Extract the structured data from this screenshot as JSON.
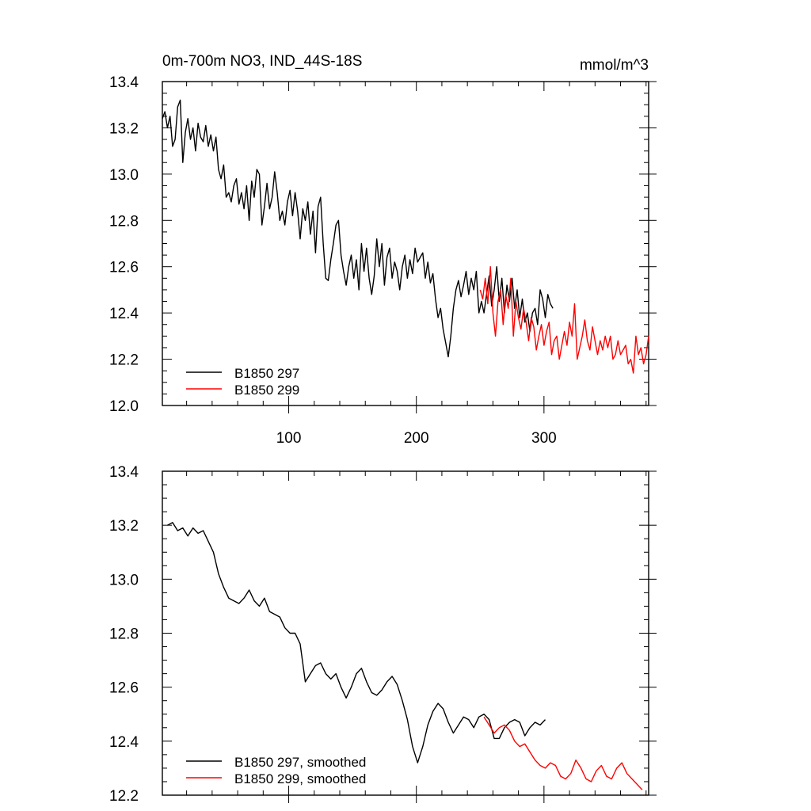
{
  "chart_data": [
    {
      "type": "line",
      "title": "0m-700m NO3, IND_44S-18S",
      "units": "mmol/m^3",
      "xlim": [
        1,
        382
      ],
      "ylim": [
        12.0,
        13.4
      ],
      "x_ticks": [
        100,
        200,
        300
      ],
      "y_ticks": [
        12.0,
        12.2,
        12.4,
        12.6,
        12.8,
        13.0,
        13.2,
        13.4
      ],
      "y_tick_labels": [
        "12.0",
        "12.2",
        "12.4",
        "12.6",
        "12.8",
        "13.0",
        "13.2",
        "13.4"
      ],
      "legend_position": "bottom-left",
      "series": [
        {
          "name": "B1850 297",
          "color": "#000000",
          "x": [
            1,
            3,
            5,
            7,
            9,
            11,
            13,
            15,
            17,
            19,
            21,
            23,
            25,
            27,
            29,
            31,
            33,
            35,
            37,
            39,
            41,
            43,
            45,
            47,
            49,
            51,
            53,
            55,
            57,
            59,
            61,
            63,
            65,
            67,
            69,
            71,
            73,
            75,
            77,
            79,
            81,
            83,
            85,
            87,
            89,
            91,
            93,
            95,
            97,
            99,
            101,
            103,
            105,
            107,
            109,
            111,
            113,
            115,
            117,
            119,
            121,
            123,
            125,
            127,
            129,
            131,
            133,
            135,
            137,
            139,
            141,
            143,
            145,
            147,
            149,
            151,
            153,
            155,
            157,
            159,
            161,
            163,
            165,
            167,
            169,
            171,
            173,
            175,
            177,
            179,
            181,
            183,
            185,
            187,
            189,
            191,
            193,
            195,
            197,
            199,
            201,
            203,
            205,
            207,
            209,
            211,
            213,
            215,
            217,
            219,
            221,
            223,
            225,
            227,
            229,
            231,
            233,
            235,
            237,
            239,
            241,
            243,
            245,
            247,
            249,
            251,
            253,
            255,
            257,
            259,
            261,
            263,
            265,
            267,
            269,
            271,
            273,
            275,
            277,
            279,
            281,
            283,
            285,
            287,
            289,
            291,
            293,
            295,
            297,
            299,
            301,
            303,
            305,
            307
          ],
          "values": [
            13.24,
            13.27,
            13.2,
            13.25,
            13.12,
            13.15,
            13.29,
            13.32,
            13.05,
            13.18,
            13.24,
            13.15,
            13.2,
            13.1,
            13.22,
            13.16,
            13.14,
            13.21,
            13.12,
            13.17,
            13.1,
            13.16,
            13.02,
            12.98,
            13.04,
            12.9,
            12.92,
            12.88,
            12.95,
            12.98,
            12.87,
            12.92,
            12.85,
            12.95,
            12.8,
            12.97,
            12.9,
            13.02,
            13.0,
            12.78,
            12.86,
            12.96,
            12.85,
            12.9,
            13.01,
            12.92,
            12.8,
            12.84,
            12.78,
            12.88,
            12.93,
            12.82,
            12.92,
            12.84,
            12.72,
            12.85,
            12.8,
            12.88,
            12.74,
            12.84,
            12.66,
            12.86,
            12.9,
            12.7,
            12.55,
            12.54,
            12.63,
            12.7,
            12.78,
            12.8,
            12.65,
            12.58,
            12.52,
            12.6,
            12.65,
            12.55,
            12.63,
            12.5,
            12.7,
            12.58,
            12.68,
            12.55,
            12.48,
            12.56,
            12.72,
            12.6,
            12.7,
            12.52,
            12.64,
            12.68,
            12.55,
            12.62,
            12.58,
            12.5,
            12.6,
            12.65,
            12.55,
            12.63,
            12.57,
            12.68,
            12.62,
            12.64,
            12.66,
            12.55,
            12.62,
            12.53,
            12.57,
            12.46,
            12.38,
            12.42,
            12.33,
            12.27,
            12.21,
            12.3,
            12.42,
            12.5,
            12.54,
            12.47,
            12.52,
            12.58,
            12.48,
            12.55,
            12.5,
            12.58,
            12.4,
            12.45,
            12.4,
            12.48,
            12.56,
            12.43,
            12.5,
            12.6,
            12.45,
            12.55,
            12.4,
            12.52,
            12.45,
            12.55,
            12.42,
            12.5,
            12.38,
            12.46,
            12.36,
            12.4,
            12.32,
            12.4,
            12.42,
            12.35,
            12.5,
            12.46,
            12.38,
            12.48,
            12.44,
            12.42
          ]
        },
        {
          "name": "B1850 299",
          "color": "#ff0000",
          "x": [
            250,
            252,
            254,
            256,
            258,
            260,
            262,
            264,
            266,
            268,
            270,
            272,
            274,
            276,
            278,
            280,
            282,
            284,
            286,
            288,
            290,
            292,
            294,
            296,
            298,
            300,
            302,
            304,
            306,
            308,
            310,
            312,
            314,
            316,
            318,
            320,
            322,
            324,
            326,
            328,
            330,
            332,
            334,
            336,
            338,
            340,
            342,
            344,
            346,
            348,
            350,
            352,
            354,
            356,
            358,
            360,
            362,
            364,
            366,
            368,
            370,
            372,
            374,
            376,
            378,
            380,
            382
          ],
          "values": [
            12.5,
            12.46,
            12.55,
            12.44,
            12.6,
            12.4,
            12.3,
            12.45,
            12.5,
            12.35,
            12.48,
            12.42,
            12.55,
            12.3,
            12.45,
            12.38,
            12.33,
            12.42,
            12.36,
            12.28,
            12.38,
            12.34,
            12.24,
            12.3,
            12.35,
            12.26,
            12.32,
            12.36,
            12.22,
            12.28,
            12.3,
            12.2,
            12.26,
            12.32,
            12.26,
            12.36,
            12.3,
            12.44,
            12.2,
            12.25,
            12.3,
            12.37,
            12.28,
            12.24,
            12.34,
            12.28,
            12.22,
            12.28,
            12.24,
            12.3,
            12.25,
            12.3,
            12.2,
            12.22,
            12.28,
            12.22,
            12.24,
            12.26,
            12.18,
            12.2,
            12.14,
            12.3,
            12.22,
            12.25,
            12.18,
            12.22,
            12.3
          ]
        }
      ]
    },
    {
      "type": "line",
      "xlim": [
        1,
        382
      ],
      "ylim": [
        12.2,
        13.4
      ],
      "y_ticks": [
        12.2,
        12.4,
        12.6,
        12.8,
        13.0,
        13.2,
        13.4
      ],
      "y_tick_labels": [
        "12.2",
        "12.4",
        "12.6",
        "12.8",
        "13.0",
        "13.2",
        "13.4"
      ],
      "legend_position": "bottom-left",
      "series": [
        {
          "name": "B1850 297, smoothed",
          "color": "#000000",
          "x": [
            5,
            9,
            13,
            17,
            21,
            25,
            29,
            33,
            37,
            41,
            45,
            49,
            53,
            57,
            61,
            65,
            69,
            73,
            77,
            81,
            85,
            89,
            93,
            97,
            101,
            105,
            109,
            113,
            117,
            121,
            125,
            129,
            133,
            137,
            141,
            145,
            149,
            153,
            157,
            161,
            165,
            169,
            173,
            177,
            181,
            185,
            189,
            193,
            197,
            201,
            205,
            209,
            213,
            217,
            221,
            225,
            229,
            233,
            237,
            241,
            245,
            249,
            253,
            257,
            261,
            265,
            269,
            273,
            277,
            281,
            285,
            289,
            293,
            297,
            301
          ],
          "values": [
            13.2,
            13.21,
            13.18,
            13.19,
            13.16,
            13.19,
            13.17,
            13.18,
            13.14,
            13.1,
            13.02,
            12.97,
            12.93,
            12.92,
            12.91,
            12.93,
            12.96,
            12.92,
            12.9,
            12.93,
            12.88,
            12.87,
            12.86,
            12.82,
            12.8,
            12.8,
            12.76,
            12.62,
            12.65,
            12.68,
            12.69,
            12.65,
            12.63,
            12.65,
            12.6,
            12.56,
            12.6,
            12.65,
            12.67,
            12.62,
            12.58,
            12.57,
            12.59,
            12.62,
            12.64,
            12.61,
            12.55,
            12.48,
            12.38,
            12.32,
            12.38,
            12.46,
            12.51,
            12.54,
            12.52,
            12.47,
            12.43,
            12.46,
            12.49,
            12.48,
            12.45,
            12.49,
            12.5,
            12.48,
            12.41,
            12.41,
            12.45,
            12.47,
            12.48,
            12.47,
            12.42,
            12.45,
            12.47,
            12.46,
            12.48
          ]
        },
        {
          "name": "B1850 299, smoothed",
          "color": "#ff0000",
          "x": [
            253,
            257,
            261,
            265,
            269,
            273,
            277,
            281,
            285,
            289,
            293,
            297,
            301,
            305,
            309,
            313,
            317,
            321,
            325,
            329,
            333,
            337,
            341,
            345,
            349,
            353,
            357,
            361,
            365,
            369,
            373,
            377
          ],
          "values": [
            12.49,
            12.46,
            12.43,
            12.45,
            12.46,
            12.44,
            12.4,
            12.38,
            12.39,
            12.36,
            12.33,
            12.31,
            12.3,
            12.32,
            12.31,
            12.27,
            12.26,
            12.28,
            12.33,
            12.3,
            12.26,
            12.25,
            12.29,
            12.31,
            12.27,
            12.26,
            12.3,
            12.32,
            12.28,
            12.26,
            12.24,
            12.22
          ]
        }
      ]
    }
  ]
}
